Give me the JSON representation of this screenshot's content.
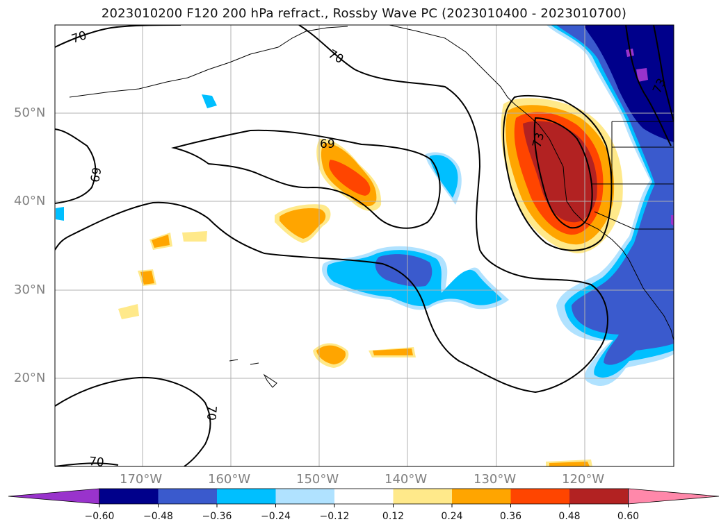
{
  "title": "2023010200 F120 200 hPa refract., Rossby Wave PC (2023010400 - 2023010700)",
  "map": {
    "lat_labels": [
      "50°N",
      "40°N",
      "30°N",
      "20°N"
    ],
    "lon_labels": [
      "170°W",
      "160°W",
      "150°W",
      "140°W",
      "130°W",
      "120°W"
    ],
    "contour_labels": [
      "70",
      "70",
      "69",
      "69",
      "73",
      "73",
      "70",
      "70"
    ],
    "contour_color": "#000000",
    "grid": true
  },
  "colorbar": {
    "ticks": [
      "−0.60",
      "−0.48",
      "−0.36",
      "−0.24",
      "−0.12",
      "0.12",
      "0.24",
      "0.36",
      "0.48",
      "0.60"
    ],
    "colors": [
      "#9933cc",
      "#00008b",
      "#3a5acd",
      "#00bfff",
      "#b0e2ff",
      "#ffffff",
      "#ffe98a",
      "#ffa500",
      "#ff4500",
      "#b22222",
      "#ff88aa"
    ],
    "extend": "both"
  }
}
